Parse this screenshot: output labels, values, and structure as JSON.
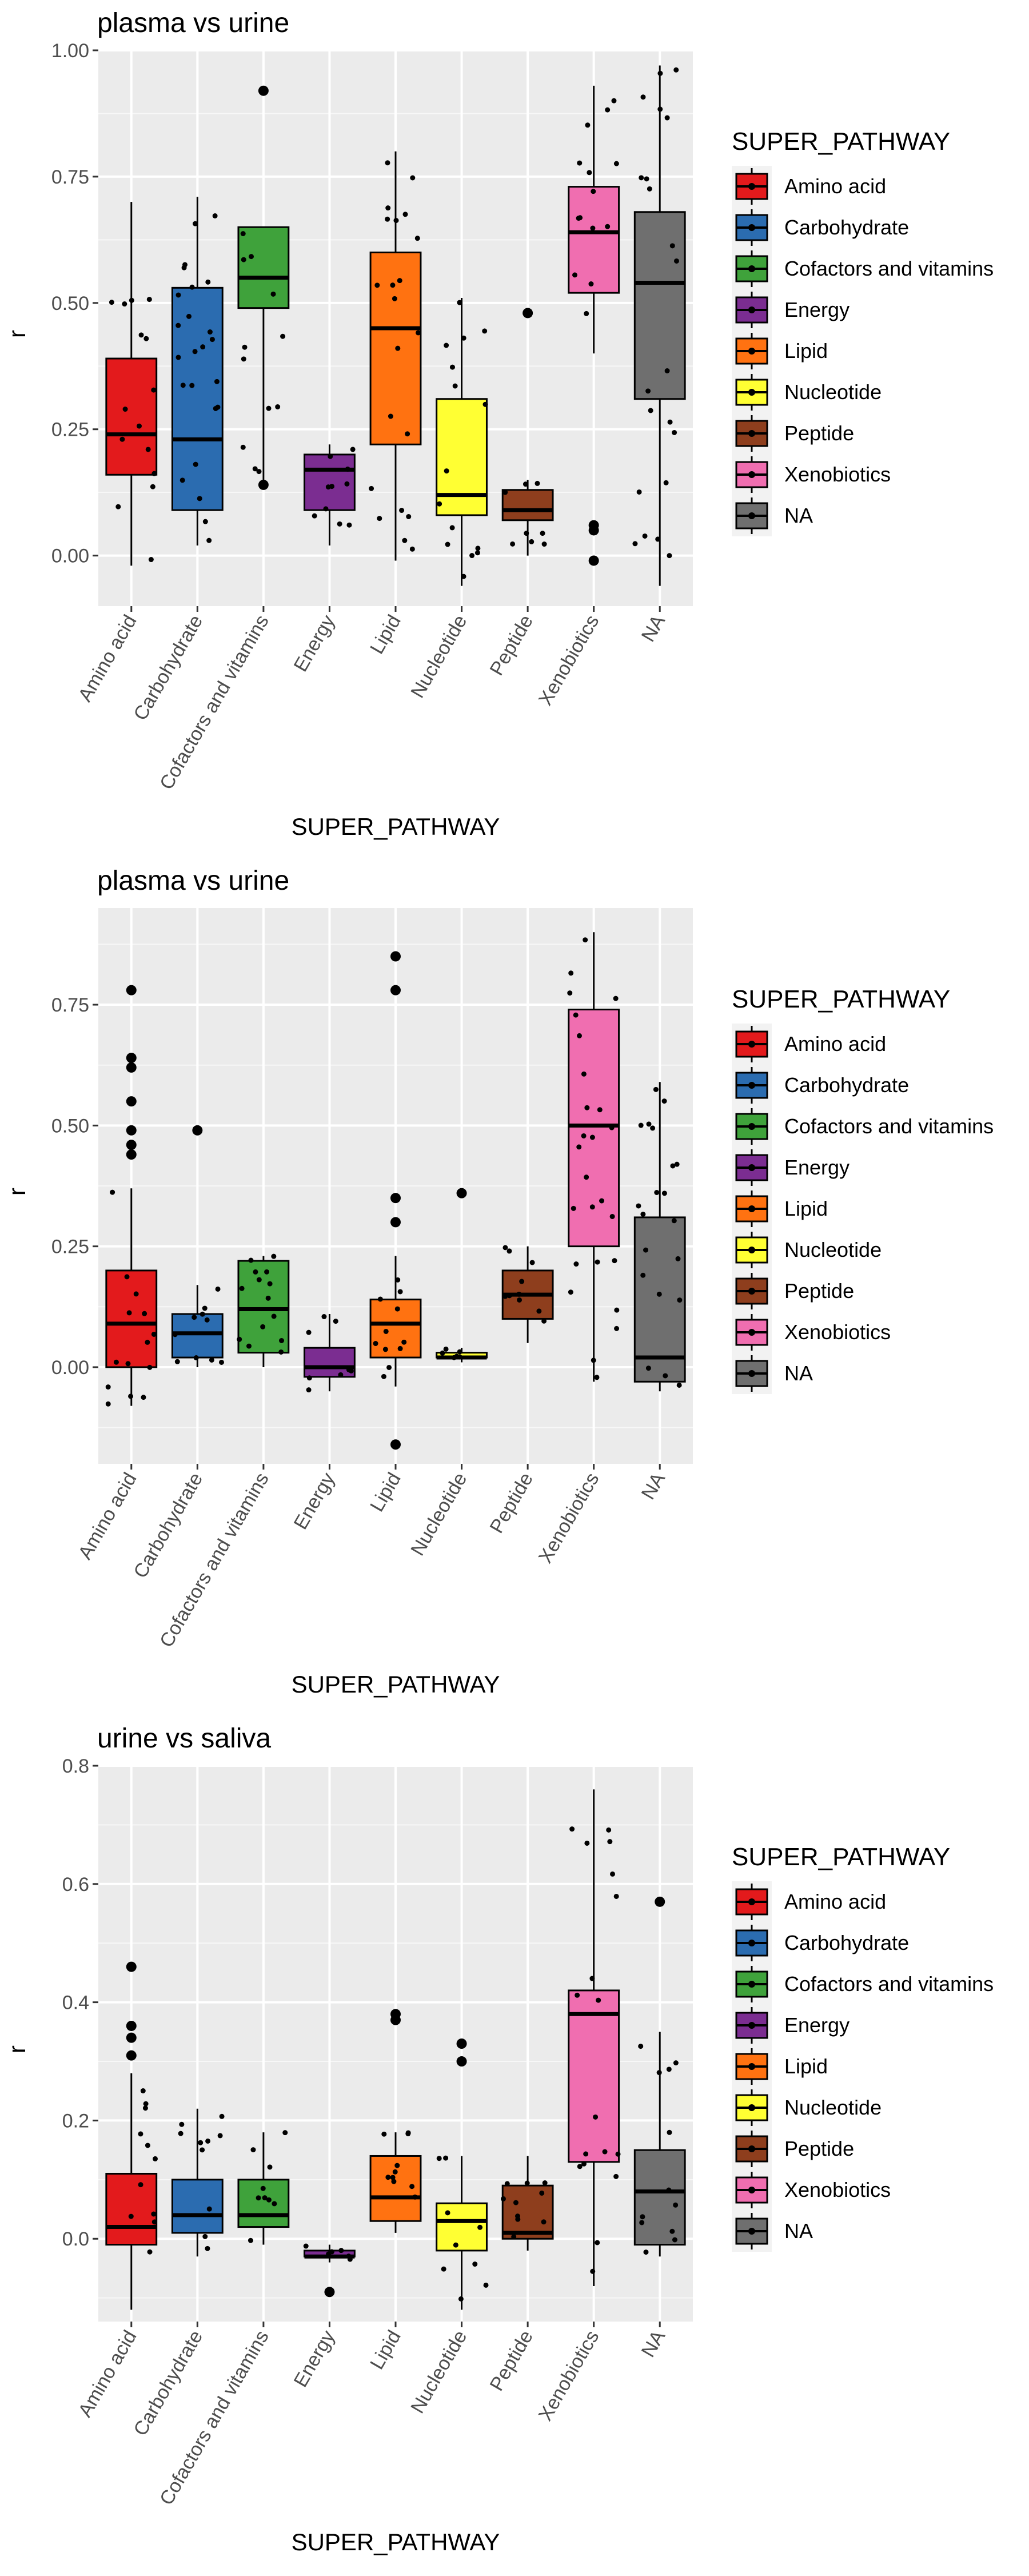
{
  "legend_title": "SUPER_PATHWAY",
  "categories": [
    "Amino acid",
    "Carbohydrate",
    "Cofactors and vitamins",
    "Energy",
    "Lipid",
    "Nucleotide",
    "Peptide",
    "Xenobiotics",
    "NA"
  ],
  "colors": {
    "Amino acid": "#e31a1c",
    "Carbohydrate": "#2b6cb0",
    "Cofactors and vitamins": "#3fa23b",
    "Energy": "#7b2d91",
    "Lipid": "#ff7211",
    "Nucleotide": "#ffff33",
    "Peptide": "#8e3e1d",
    "Xenobiotics": "#f06eb0",
    "NA": "#6f6f6f"
  },
  "chart_data": [
    {
      "type": "box",
      "title": "plasma vs urine",
      "xlabel": "SUPER_PATHWAY",
      "ylabel": "r",
      "ylim": [
        -0.1,
        1.0
      ],
      "yticks": [
        0.0,
        0.25,
        0.5,
        0.75,
        1.0
      ],
      "ytick_labels": [
        "0.00",
        "0.25",
        "0.50",
        "0.75",
        "1.00"
      ],
      "boxes": [
        {
          "category": "Amino acid",
          "min": -0.02,
          "q1": 0.16,
          "median": 0.24,
          "q3": 0.39,
          "max": 0.7,
          "outliers": []
        },
        {
          "category": "Carbohydrate",
          "min": 0.02,
          "q1": 0.09,
          "median": 0.23,
          "q3": 0.53,
          "max": 0.71,
          "outliers": []
        },
        {
          "category": "Cofactors and vitamins",
          "min": 0.14,
          "q1": 0.49,
          "median": 0.55,
          "q3": 0.65,
          "max": 0.65,
          "outliers": [
            0.92,
            0.14
          ]
        },
        {
          "category": "Energy",
          "min": 0.02,
          "q1": 0.09,
          "median": 0.17,
          "q3": 0.2,
          "max": 0.22,
          "outliers": []
        },
        {
          "category": "Lipid",
          "min": -0.01,
          "q1": 0.22,
          "median": 0.45,
          "q3": 0.6,
          "max": 0.8,
          "outliers": []
        },
        {
          "category": "Nucleotide",
          "min": -0.06,
          "q1": 0.08,
          "median": 0.12,
          "q3": 0.31,
          "max": 0.51,
          "outliers": []
        },
        {
          "category": "Peptide",
          "min": 0.0,
          "q1": 0.07,
          "median": 0.09,
          "q3": 0.13,
          "max": 0.15,
          "outliers": [
            0.48
          ]
        },
        {
          "category": "Xenobiotics",
          "min": 0.4,
          "q1": 0.52,
          "median": 0.64,
          "q3": 0.73,
          "max": 0.93,
          "outliers": [
            0.06,
            0.05,
            -0.01
          ]
        },
        {
          "category": "NA",
          "min": -0.06,
          "q1": 0.31,
          "median": 0.54,
          "q3": 0.68,
          "max": 0.97,
          "outliers": []
        }
      ]
    },
    {
      "type": "box",
      "title": "plasma vs urine",
      "xlabel": "SUPER_PATHWAY",
      "ylabel": "r",
      "ylim": [
        -0.2,
        0.95
      ],
      "yticks": [
        0.0,
        0.25,
        0.5,
        0.75
      ],
      "ytick_labels": [
        "0.00",
        "0.25",
        "0.50",
        "0.75"
      ],
      "boxes": [
        {
          "category": "Amino acid",
          "min": -0.08,
          "q1": 0.0,
          "median": 0.09,
          "q3": 0.2,
          "max": 0.37,
          "outliers": [
            0.78,
            0.64,
            0.62,
            0.55,
            0.49,
            0.46,
            0.44
          ]
        },
        {
          "category": "Carbohydrate",
          "min": 0.0,
          "q1": 0.02,
          "median": 0.07,
          "q3": 0.11,
          "max": 0.17,
          "outliers": [
            0.49
          ]
        },
        {
          "category": "Cofactors and vitamins",
          "min": 0.0,
          "q1": 0.03,
          "median": 0.12,
          "q3": 0.22,
          "max": 0.23,
          "outliers": []
        },
        {
          "category": "Energy",
          "min": -0.05,
          "q1": -0.02,
          "median": 0.0,
          "q3": 0.04,
          "max": 0.11,
          "outliers": []
        },
        {
          "category": "Lipid",
          "min": -0.04,
          "q1": 0.02,
          "median": 0.09,
          "q3": 0.14,
          "max": 0.23,
          "outliers": [
            0.85,
            0.78,
            0.35,
            0.3,
            -0.16
          ]
        },
        {
          "category": "Nucleotide",
          "min": 0.01,
          "q1": 0.02,
          "median": 0.02,
          "q3": 0.03,
          "max": 0.04,
          "outliers": [
            0.36
          ]
        },
        {
          "category": "Peptide",
          "min": 0.05,
          "q1": 0.1,
          "median": 0.15,
          "q3": 0.2,
          "max": 0.25,
          "outliers": []
        },
        {
          "category": "Xenobiotics",
          "min": -0.03,
          "q1": 0.25,
          "median": 0.5,
          "q3": 0.74,
          "max": 0.9,
          "outliers": []
        },
        {
          "category": "NA",
          "min": -0.05,
          "q1": -0.03,
          "median": 0.02,
          "q3": 0.31,
          "max": 0.59,
          "outliers": []
        }
      ]
    },
    {
      "type": "box",
      "title": "urine vs saliva",
      "xlabel": "SUPER_PATHWAY",
      "ylabel": "r",
      "ylim": [
        -0.14,
        0.8
      ],
      "yticks": [
        0.0,
        0.2,
        0.4,
        0.6,
        0.8
      ],
      "ytick_labels": [
        "0.0",
        "0.2",
        "0.4",
        "0.6",
        "0.8"
      ],
      "boxes": [
        {
          "category": "Amino acid",
          "min": -0.12,
          "q1": -0.01,
          "median": 0.02,
          "q3": 0.11,
          "max": 0.28,
          "outliers": [
            0.46,
            0.36,
            0.34,
            0.31
          ]
        },
        {
          "category": "Carbohydrate",
          "min": -0.03,
          "q1": 0.01,
          "median": 0.04,
          "q3": 0.1,
          "max": 0.22,
          "outliers": []
        },
        {
          "category": "Cofactors and vitamins",
          "min": -0.01,
          "q1": 0.02,
          "median": 0.04,
          "q3": 0.1,
          "max": 0.18,
          "outliers": []
        },
        {
          "category": "Energy",
          "min": -0.04,
          "q1": -0.03,
          "median": -0.03,
          "q3": -0.02,
          "max": -0.01,
          "outliers": [
            -0.09
          ]
        },
        {
          "category": "Lipid",
          "min": 0.01,
          "q1": 0.03,
          "median": 0.07,
          "q3": 0.14,
          "max": 0.18,
          "outliers": [
            0.38,
            0.37
          ]
        },
        {
          "category": "Nucleotide",
          "min": -0.12,
          "q1": -0.02,
          "median": 0.03,
          "q3": 0.06,
          "max": 0.14,
          "outliers": [
            0.33,
            0.3
          ]
        },
        {
          "category": "Peptide",
          "min": -0.02,
          "q1": 0.0,
          "median": 0.01,
          "q3": 0.09,
          "max": 0.14,
          "outliers": []
        },
        {
          "category": "Xenobiotics",
          "min": -0.08,
          "q1": 0.13,
          "median": 0.38,
          "q3": 0.42,
          "max": 0.76,
          "outliers": []
        },
        {
          "category": "NA",
          "min": -0.03,
          "q1": -0.01,
          "median": 0.08,
          "q3": 0.15,
          "max": 0.35,
          "outliers": [
            0.57
          ]
        }
      ]
    }
  ]
}
